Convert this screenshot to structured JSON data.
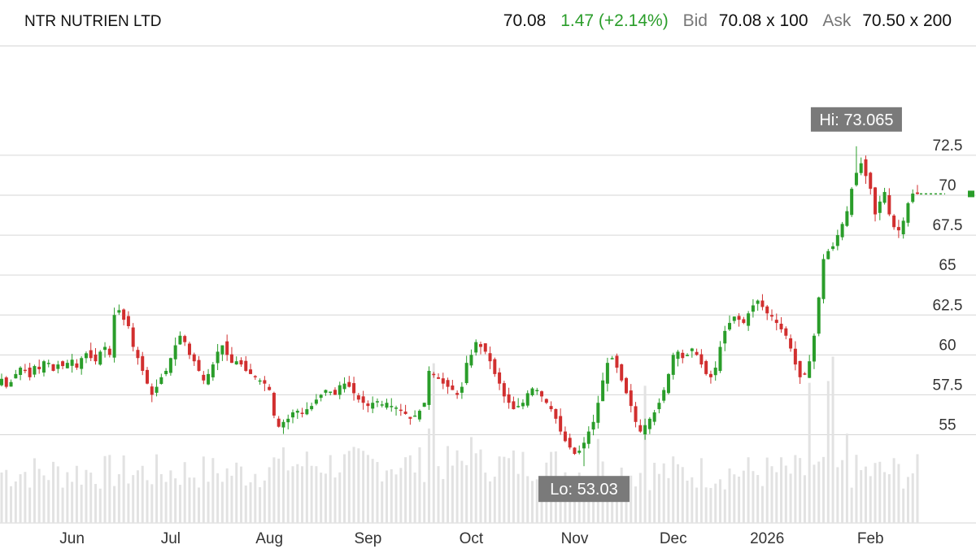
{
  "header": {
    "ticker": "NTR NUTRIEN LTD",
    "last": "70.08",
    "change": "1.47 (+2.14%)",
    "bid_label": "Bid",
    "bid": "70.08 x 100",
    "ask_label": "Ask",
    "ask": "70.50 x 200"
  },
  "colors": {
    "up": "#2a9d2a",
    "down": "#d12f2f",
    "volume": "#e2e2e2",
    "grid": "#d6d6d6",
    "tag": "#7a7a7a"
  },
  "chart_data": {
    "type": "candlestick",
    "ylim": [
      50,
      75
    ],
    "yticks": [
      "72.5",
      "70",
      "67.5",
      "65",
      "62.5",
      "60",
      "57.5",
      "55"
    ],
    "ytick_values": [
      72.5,
      70,
      67.5,
      65,
      62.5,
      60,
      57.5,
      55
    ],
    "xtick_labels": [
      "Jun",
      "Jul",
      "Aug",
      "Sep",
      "Oct",
      "Nov",
      "Dec",
      "2026",
      "Feb"
    ],
    "xtick_index": [
      15,
      36,
      57,
      78,
      100,
      122,
      143,
      163,
      185
    ],
    "high_label": "Hi: 73.065",
    "high": 73.065,
    "high_index": 182,
    "low_label": "Lo: 53.03",
    "low": 53.03,
    "low_index": 124,
    "last_price": 70.08,
    "close": [
      58.5,
      58.0,
      58.3,
      58.8,
      59.2,
      59.0,
      58.6,
      59.3,
      59.1,
      59.6,
      59.5,
      59.0,
      59.4,
      59.3,
      59.5,
      59.7,
      59.2,
      59.8,
      60.1,
      59.8,
      59.6,
      60.2,
      60.5,
      60.0,
      62.5,
      62.8,
      62.2,
      61.8,
      60.5,
      59.8,
      59.0,
      58.2,
      57.5,
      58.0,
      58.6,
      59.0,
      59.8,
      60.6,
      61.2,
      60.8,
      60.0,
      59.6,
      59.0,
      58.4,
      58.8,
      59.4,
      60.2,
      60.6,
      60.0,
      59.5,
      59.6,
      59.4,
      59.0,
      58.8,
      58.6,
      58.4,
      58.2,
      57.8,
      56.2,
      55.5,
      55.8,
      56.0,
      56.4,
      56.5,
      56.3,
      56.6,
      56.8,
      57.2,
      57.5,
      57.8,
      57.7,
      57.5,
      58.1,
      58.2,
      58.0,
      57.6,
      57.2,
      57.0,
      56.8,
      57.0,
      57.1,
      56.9,
      57.0,
      56.8,
      56.7,
      56.5,
      56.3,
      56.0,
      56.2,
      56.5,
      57.0,
      59.0,
      58.8,
      58.5,
      58.2,
      58.0,
      57.8,
      57.5,
      58.0,
      59.5,
      60.0,
      60.8,
      60.5,
      60.2,
      59.6,
      58.8,
      58.2,
      57.4,
      57.0,
      56.6,
      56.8,
      57.0,
      57.6,
      57.9,
      57.8,
      57.4,
      57.0,
      56.6,
      56.0,
      55.2,
      54.6,
      54.2,
      53.8,
      54.0,
      54.5,
      55.2,
      55.8,
      57.0,
      58.4,
      59.5,
      59.8,
      59.2,
      58.4,
      57.6,
      56.8,
      55.8,
      55.2,
      55.6,
      56.0,
      56.4,
      57.0,
      57.8,
      58.8,
      60.0,
      60.2,
      59.8,
      60.0,
      60.4,
      60.0,
      59.4,
      58.8,
      58.6,
      59.2,
      60.5,
      61.5,
      62.0,
      62.4,
      62.2,
      62.0,
      62.6,
      63.1,
      63.4,
      63.0,
      62.6,
      62.4,
      62.0,
      61.6,
      61.2,
      60.4,
      59.4,
      58.6,
      58.8,
      59.6,
      61.2,
      63.6,
      66.0,
      66.5,
      66.8,
      67.5,
      68.2,
      69.0,
      70.4,
      71.4,
      72.0,
      71.2,
      70.4,
      68.8,
      69.6,
      70.2,
      68.8,
      68.0,
      67.8,
      68.4,
      69.5,
      70.1,
      70.08
    ]
  }
}
